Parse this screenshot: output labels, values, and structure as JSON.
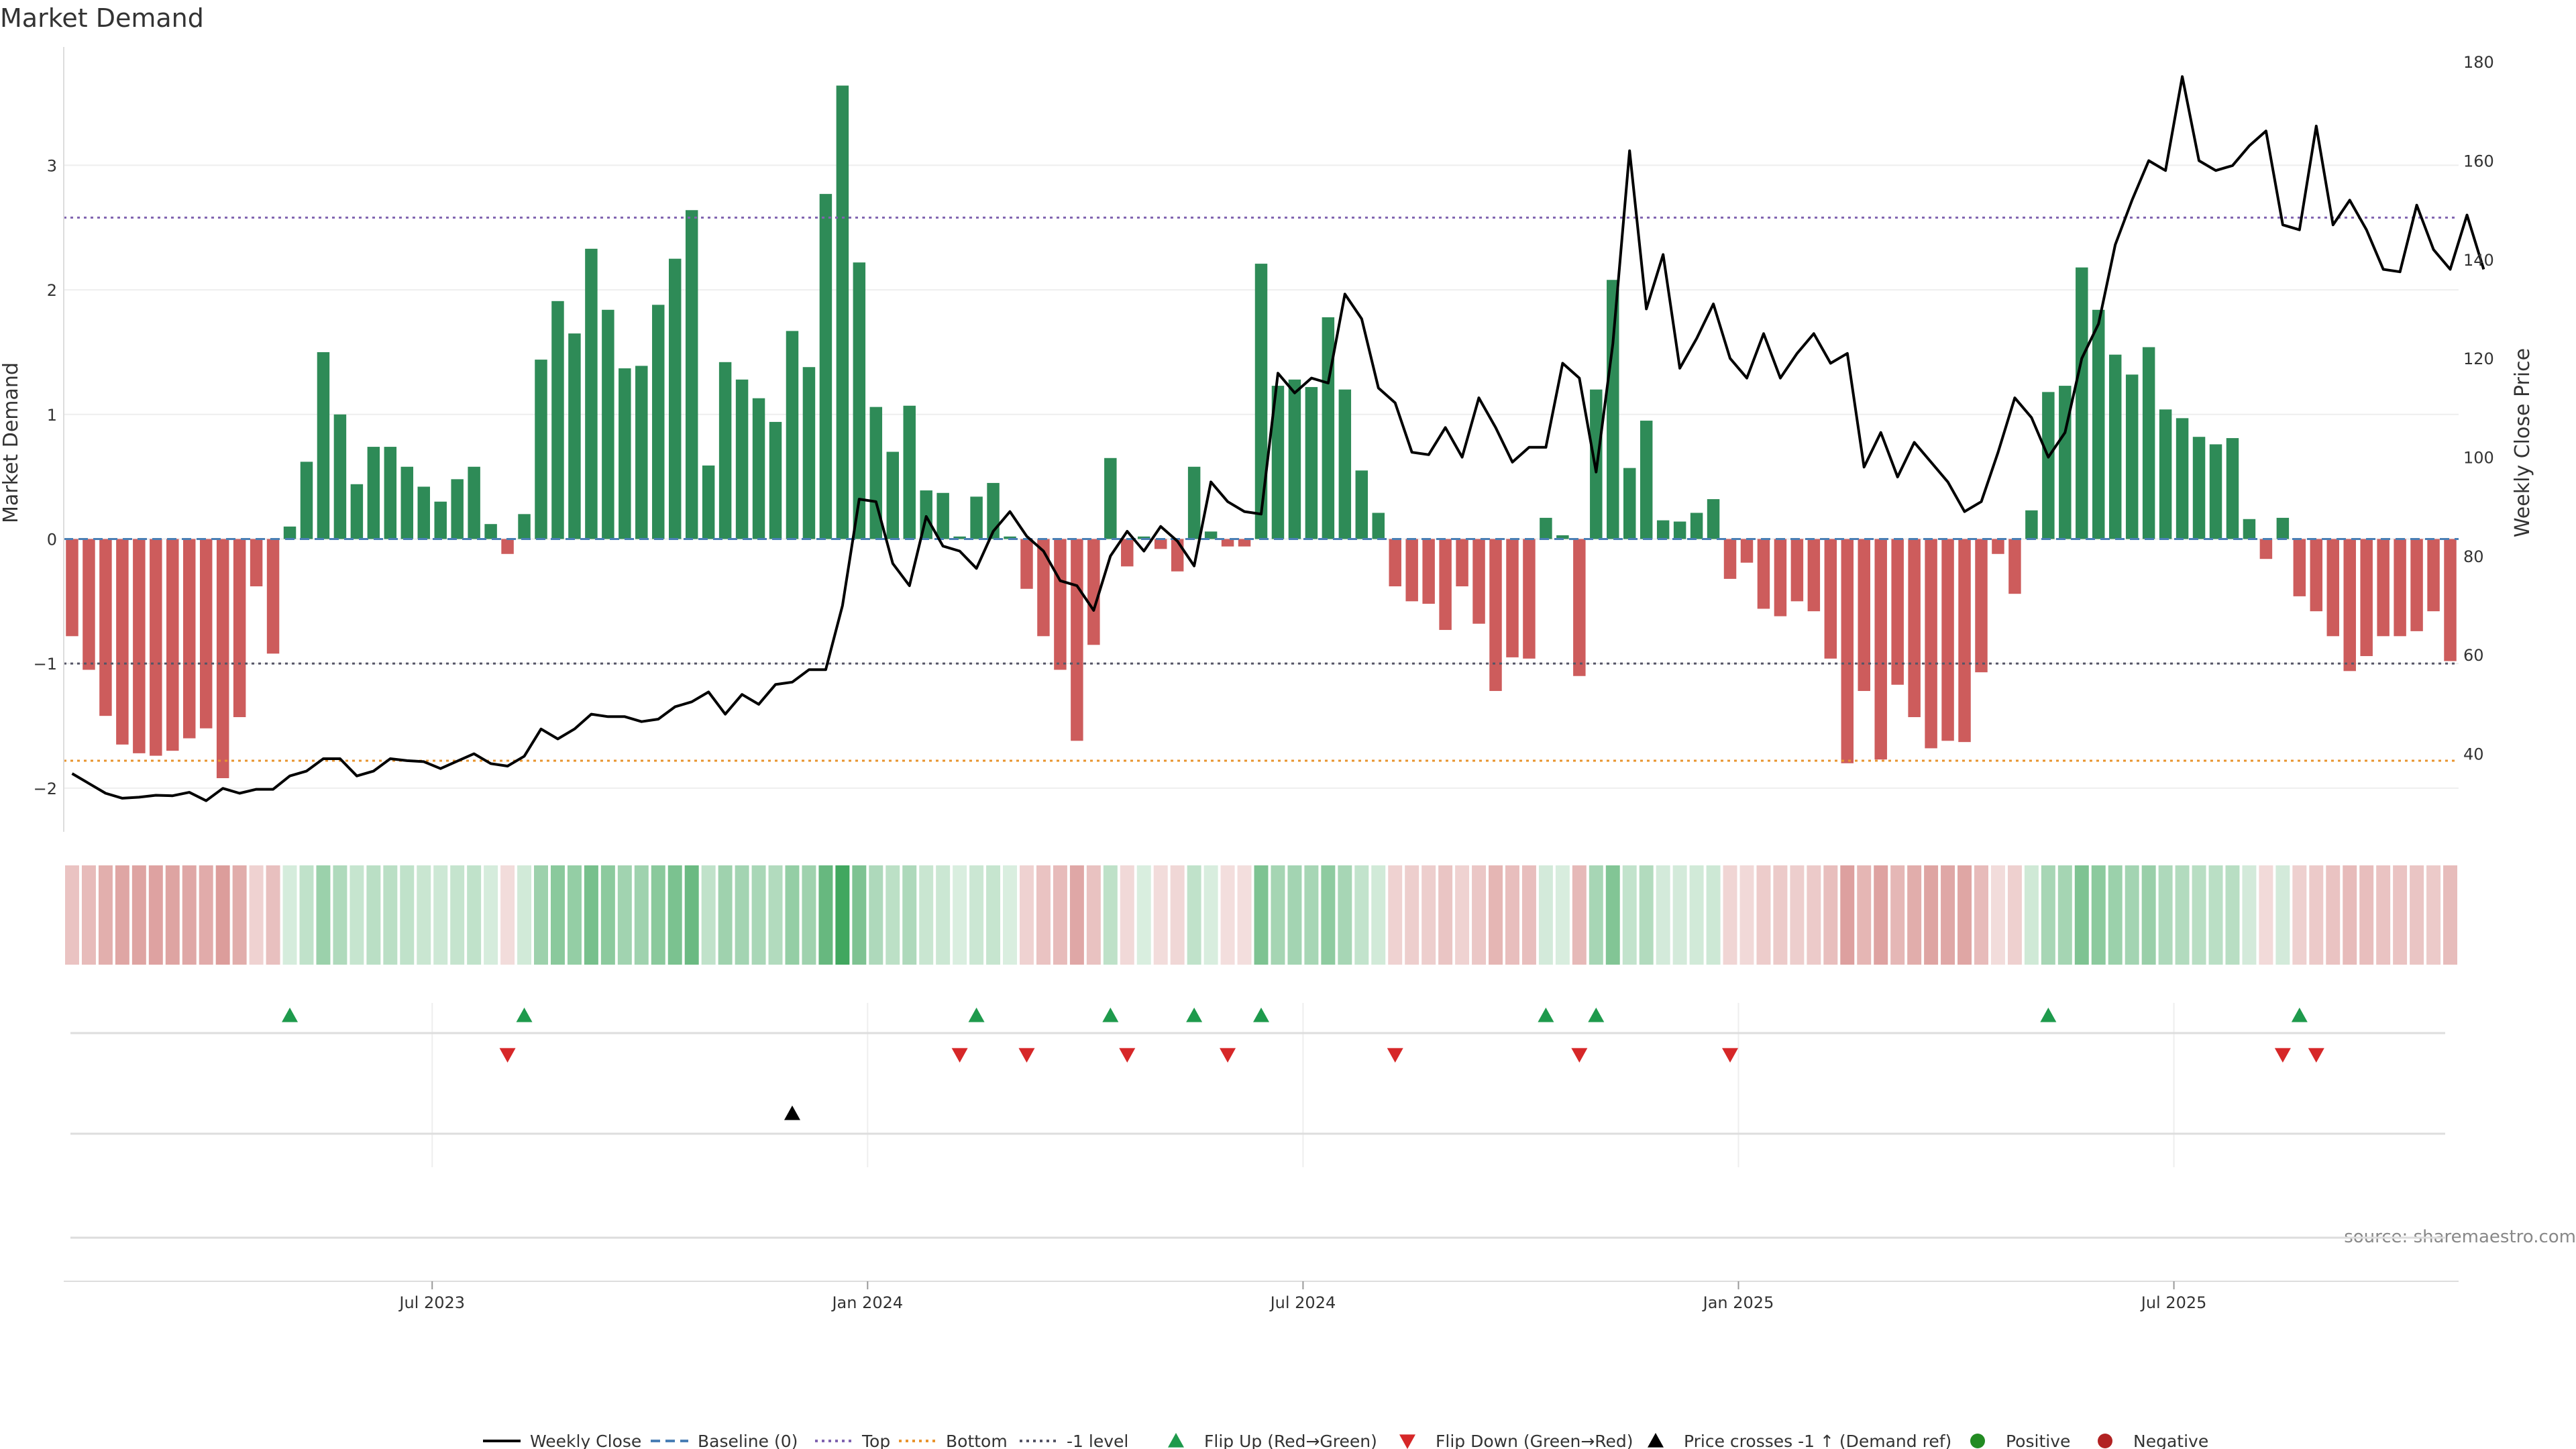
{
  "title": "Market Demand",
  "source": "source: sharemaestro.com",
  "colors": {
    "positive_bar": "#2e8b57",
    "negative_bar": "#cd5c5c",
    "weekly_close": "#000000",
    "baseline": "#4a7fb5",
    "top": "#8064b0",
    "bottom": "#e8942e",
    "minus1_level": "#555566",
    "flip_up": "#1e9a4c",
    "flip_down": "#d62728",
    "price_cross": "#000000",
    "positive_dot": "#228b22",
    "negative_dot": "#b22222"
  },
  "chart_data": {
    "type": "bar",
    "title": "Market Demand",
    "ylabel": "Market Demand",
    "y2label": "Weekly Close Price",
    "ylim": [
      -2.2,
      3.95
    ],
    "y2lim": [
      28,
      183
    ],
    "yticks": [
      -2,
      -1,
      0,
      1,
      2,
      3
    ],
    "y2ticks": [
      40,
      60,
      80,
      100,
      120,
      140,
      160,
      180
    ],
    "xticks": [
      {
        "label": "Jul 2023",
        "week": 22
      },
      {
        "label": "Jan 2024",
        "week": 48
      },
      {
        "label": "Jul 2024",
        "week": 74
      },
      {
        "label": "Jan 2025",
        "week": 100
      },
      {
        "label": "Jul 2025",
        "week": 126
      }
    ],
    "levels": {
      "baseline": 0,
      "top": 2.58,
      "bottom": -1.78,
      "minus1": -1
    },
    "series": [
      {
        "name": "Market Demand",
        "values": [
          -0.78,
          -1.05,
          -1.42,
          -1.65,
          -1.72,
          -1.74,
          -1.7,
          -1.6,
          -1.52,
          -1.92,
          -1.43,
          -0.38,
          -0.92,
          0.1,
          0.62,
          1.5,
          1.0,
          0.44,
          0.74,
          0.74,
          0.58,
          0.42,
          0.3,
          0.48,
          0.58,
          0.12,
          -0.12,
          0.2,
          1.44,
          1.91,
          1.65,
          2.33,
          1.84,
          1.37,
          1.39,
          1.88,
          2.25,
          2.64,
          0.59,
          1.42,
          1.28,
          1.13,
          0.94,
          1.67,
          1.38,
          2.77,
          3.64,
          2.22,
          1.06,
          0.7,
          1.07,
          0.39,
          0.37,
          0.02,
          0.34,
          0.45,
          0.02,
          -0.4,
          -0.78,
          -1.05,
          -1.62,
          -0.85,
          0.65,
          -0.22,
          0.02,
          -0.08,
          -0.26,
          0.58,
          0.06,
          -0.06,
          -0.06,
          2.21,
          1.23,
          1.28,
          1.22,
          1.78,
          1.2,
          0.55,
          0.21,
          -0.38,
          -0.5,
          -0.52,
          -0.73,
          -0.38,
          -0.68,
          -1.22,
          -0.95,
          -0.96,
          0.17,
          0.03,
          -1.1,
          1.2,
          2.08,
          0.57,
          0.95,
          0.15,
          0.14,
          0.21,
          0.32,
          -0.32,
          -0.19,
          -0.56,
          -0.62,
          -0.5,
          -0.58,
          -0.96,
          -1.8,
          -1.22,
          -1.77,
          -1.17,
          -1.43,
          -1.68,
          -1.62,
          -1.63,
          -1.07,
          -0.12,
          -0.44,
          0.23,
          1.18,
          1.23,
          2.18,
          1.84,
          1.48,
          1.32,
          1.54,
          1.04,
          0.97,
          0.82,
          0.76,
          0.81,
          0.16,
          -0.16,
          0.17,
          -0.46,
          -0.58,
          -0.78,
          -1.06,
          -0.94,
          -0.78,
          -0.78,
          -0.74,
          -0.58,
          -0.98
        ]
      },
      {
        "name": "Weekly Close",
        "axis": "right",
        "values": [
          36,
          34,
          32,
          31,
          31.2,
          31.6,
          31.5,
          32.2,
          30.5,
          33,
          32,
          32.8,
          32.8,
          35.5,
          36.5,
          39,
          39,
          35.5,
          36.5,
          39,
          38.6,
          38.4,
          37,
          38.5,
          40,
          38,
          37.5,
          39.5,
          45,
          43,
          45,
          48,
          47.5,
          47.5,
          46.5,
          47,
          49.5,
          50.5,
          52.5,
          48,
          52,
          50,
          54,
          54.5,
          57,
          57,
          70,
          91.5,
          91,
          78.5,
          74,
          88,
          82,
          81,
          77.5,
          85,
          89,
          84,
          81,
          75,
          74,
          69,
          80,
          85,
          81,
          86,
          83,
          78,
          95,
          91,
          89,
          88.5,
          117,
          113,
          116,
          115,
          133,
          128,
          114,
          111,
          101,
          100.5,
          106,
          100,
          112,
          106,
          99,
          102,
          102,
          119,
          116,
          97,
          123,
          162,
          130,
          141,
          118,
          124,
          131,
          120,
          116,
          125,
          116,
          121,
          125,
          119,
          121,
          98,
          105,
          96,
          103,
          99,
          95,
          89,
          91,
          101,
          112,
          108,
          100,
          105,
          120,
          127,
          143,
          152,
          160,
          158,
          177,
          160,
          158,
          159,
          163,
          166,
          147,
          146,
          167,
          147,
          152,
          146,
          138,
          137.5,
          151,
          142,
          138,
          149,
          138
        ]
      }
    ],
    "flip_up_weeks": [
      13,
      27,
      54,
      62,
      67,
      71,
      88,
      91,
      118,
      133
    ],
    "flip_down_weeks": [
      26,
      53,
      57,
      63,
      69,
      79,
      90,
      99,
      132,
      134
    ],
    "price_cross_weeks": [
      43
    ]
  },
  "legend": [
    {
      "label": "Weekly Close",
      "marker": "line",
      "color": "#000000"
    },
    {
      "label": "Baseline (0)",
      "marker": "dash",
      "color": "#4a7fb5"
    },
    {
      "label": "Top",
      "marker": "dot-line",
      "color": "#8064b0"
    },
    {
      "label": "Bottom",
      "marker": "dot-line",
      "color": "#e8942e"
    },
    {
      "label": "-1 level",
      "marker": "dot-line",
      "color": "#555566"
    },
    {
      "label": "Flip Up (Red→Green)",
      "marker": "triangle-up",
      "color": "#1e9a4c"
    },
    {
      "label": "Flip Down (Green→Red)",
      "marker": "triangle-down",
      "color": "#d62728"
    },
    {
      "label": "Price crosses -1 ↑ (Demand ref)",
      "marker": "triangle-up",
      "color": "#000000"
    },
    {
      "label": "Positive",
      "marker": "circle",
      "color": "#228b22"
    },
    {
      "label": "Negative",
      "marker": "circle",
      "color": "#b22222"
    }
  ]
}
